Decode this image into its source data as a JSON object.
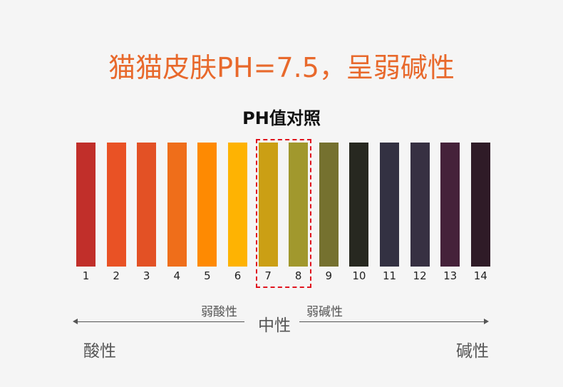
{
  "title": "猫猫皮肤PH=7.5，呈弱碱性",
  "subtitle": "PH值对照",
  "scale": [
    {
      "label": "1",
      "color": "#c12f2a"
    },
    {
      "label": "2",
      "color": "#e95225"
    },
    {
      "label": "3",
      "color": "#e35125"
    },
    {
      "label": "4",
      "color": "#ef6e1a"
    },
    {
      "label": "5",
      "color": "#fe8a02"
    },
    {
      "label": "6",
      "color": "#feb302"
    },
    {
      "label": "7",
      "color": "#cb9f14"
    },
    {
      "label": "8",
      "color": "#a1982d"
    },
    {
      "label": "9",
      "color": "#75712f"
    },
    {
      "label": "10",
      "color": "#272820"
    },
    {
      "label": "11",
      "color": "#333142"
    },
    {
      "label": "12",
      "color": "#373042"
    },
    {
      "label": "13",
      "color": "#45223a"
    },
    {
      "label": "14",
      "color": "#2f1b27"
    }
  ],
  "highlight": {
    "range": [
      "7",
      "8"
    ],
    "color": "#e0141e"
  },
  "axis": {
    "weak_acid": "弱酸性",
    "neutral": "中性",
    "weak_base": "弱碱性",
    "acid": "酸性",
    "base": "碱性"
  }
}
